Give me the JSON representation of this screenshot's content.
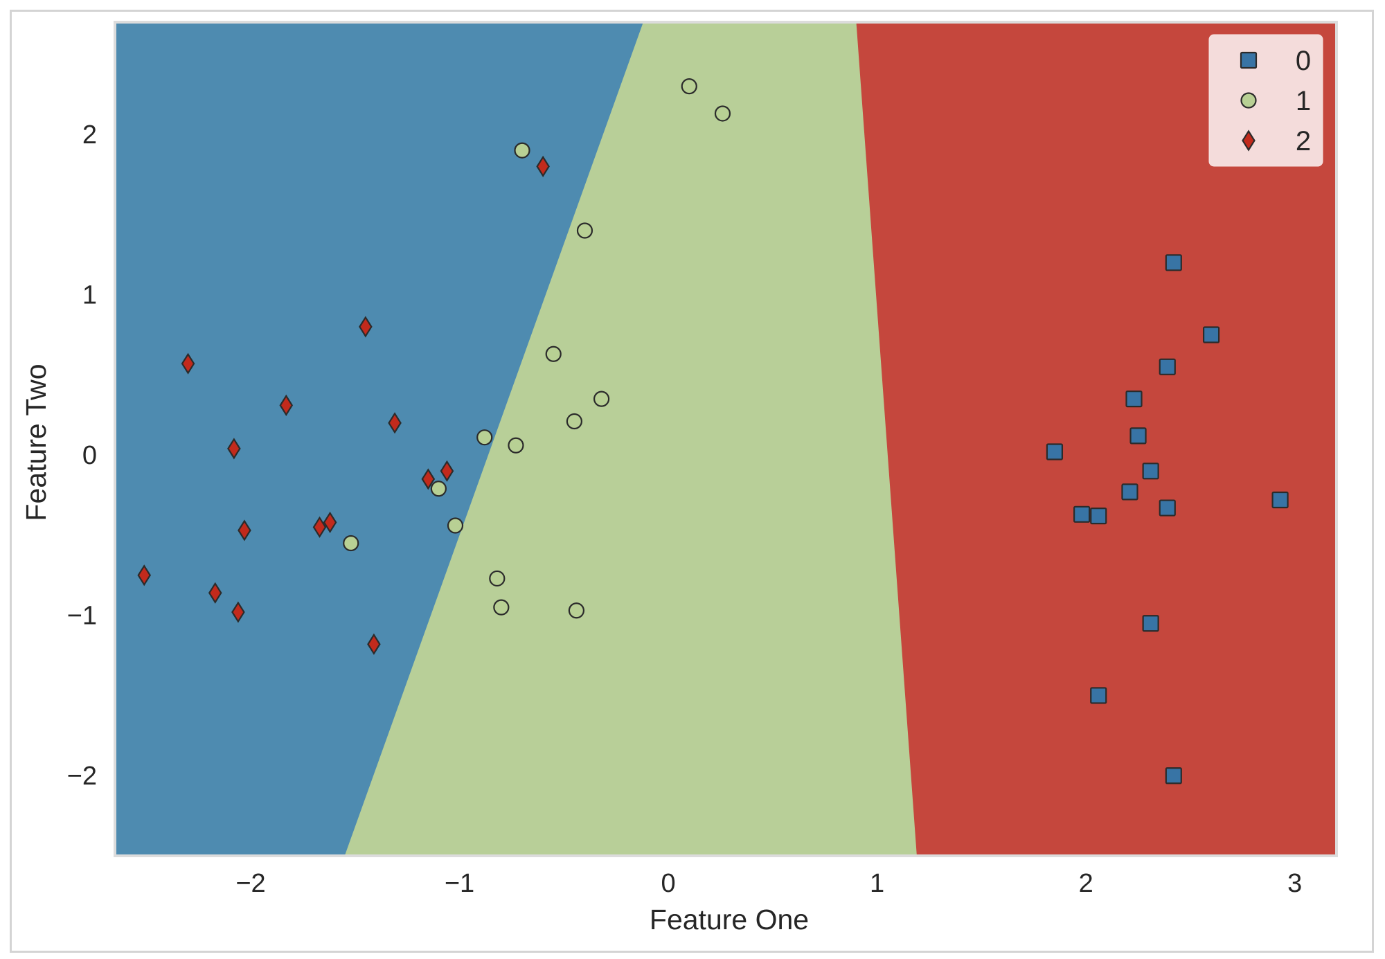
{
  "chart_data": {
    "type": "scatter",
    "title": "",
    "xlabel": "Feature One",
    "ylabel": "Feature Two",
    "xlim": [
      -2.65,
      3.2
    ],
    "ylim": [
      -2.5,
      2.7
    ],
    "xticks": [
      -2,
      -1,
      0,
      1,
      2,
      3
    ],
    "yticks": [
      -2,
      -1,
      0,
      1,
      2
    ],
    "xtick_labels": [
      "−2",
      "−1",
      "0",
      "1",
      "2",
      "3"
    ],
    "ytick_labels": [
      "−2",
      "−1",
      "0",
      "1",
      "2"
    ],
    "grid": false,
    "legend_position": "top-right",
    "decision_regions": [
      {
        "class": "0",
        "color": "#4e8bb0",
        "description": "left region",
        "boundary_top_x": -0.12,
        "boundary_bottom_x": -1.55
      },
      {
        "class": "1",
        "color": "#b8cf98",
        "description": "middle region"
      },
      {
        "class": "2",
        "color": "#c5473d",
        "description": "right region",
        "boundary_top_x": 0.9,
        "boundary_bottom_x": 1.19
      }
    ],
    "series": [
      {
        "name": "0",
        "marker": "square",
        "color": "#3874a5",
        "points": [
          [
            2.42,
            1.2
          ],
          [
            2.6,
            0.75
          ],
          [
            2.39,
            0.55
          ],
          [
            2.23,
            0.35
          ],
          [
            2.25,
            0.12
          ],
          [
            1.85,
            0.02
          ],
          [
            2.31,
            -0.1
          ],
          [
            2.21,
            -0.23
          ],
          [
            2.39,
            -0.33
          ],
          [
            1.98,
            -0.37
          ],
          [
            2.06,
            -0.38
          ],
          [
            2.93,
            -0.28
          ],
          [
            2.31,
            -1.05
          ],
          [
            2.06,
            -1.5
          ],
          [
            2.42,
            -2.0
          ]
        ]
      },
      {
        "name": "1",
        "marker": "circle",
        "color": "#b8d094",
        "points": [
          [
            0.1,
            2.3
          ],
          [
            0.26,
            2.13
          ],
          [
            -0.7,
            1.9
          ],
          [
            -0.4,
            1.4
          ],
          [
            -0.55,
            0.63
          ],
          [
            -0.32,
            0.35
          ],
          [
            -0.45,
            0.21
          ],
          [
            -0.88,
            0.11
          ],
          [
            -0.73,
            0.06
          ],
          [
            -1.1,
            -0.21
          ],
          [
            -1.02,
            -0.44
          ],
          [
            -1.52,
            -0.55
          ],
          [
            -0.82,
            -0.77
          ],
          [
            -0.8,
            -0.95
          ],
          [
            -0.44,
            -0.97
          ]
        ]
      },
      {
        "name": "2",
        "marker": "diamond",
        "color": "#c22a1c",
        "points": [
          [
            -0.6,
            1.8
          ],
          [
            -1.45,
            0.8
          ],
          [
            -2.3,
            0.57
          ],
          [
            -1.83,
            0.31
          ],
          [
            -1.31,
            0.2
          ],
          [
            -2.08,
            0.04
          ],
          [
            -1.06,
            -0.1
          ],
          [
            -1.15,
            -0.15
          ],
          [
            -2.03,
            -0.47
          ],
          [
            -1.67,
            -0.45
          ],
          [
            -1.62,
            -0.42
          ],
          [
            -2.51,
            -0.75
          ],
          [
            -2.17,
            -0.86
          ],
          [
            -2.06,
            -0.98
          ],
          [
            -1.41,
            -1.18
          ]
        ]
      }
    ]
  }
}
